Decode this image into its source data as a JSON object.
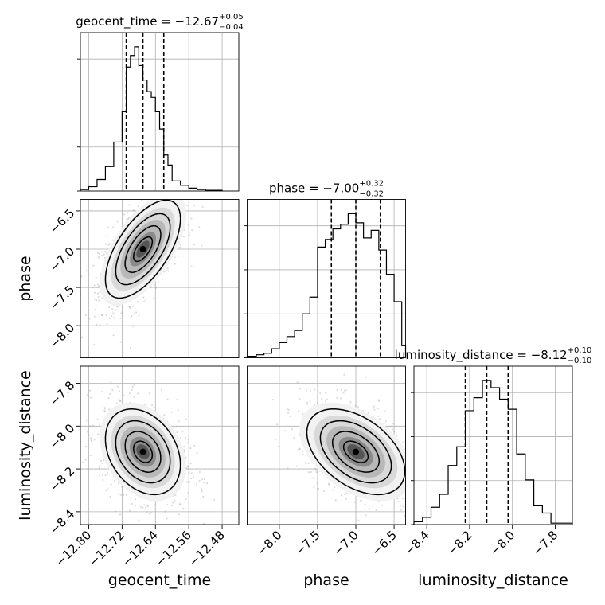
{
  "chart_data": {
    "type": "corner",
    "parameters": [
      "geocent_time",
      "phase",
      "luminosity_distance"
    ],
    "axis_labels": {
      "geocent_time": "geocent_time",
      "phase": "phase",
      "luminosity_distance": "luminosity_distance"
    },
    "ranges": {
      "geocent_time": [
        -12.82,
        -12.44
      ],
      "phase": [
        -8.42,
        -6.35
      ],
      "luminosity_distance": [
        -8.46,
        -7.72
      ]
    },
    "ticks": {
      "geocent_time": [
        -12.8,
        -12.72,
        -12.64,
        -12.56,
        -12.48
      ],
      "phase": [
        -8.0,
        -7.5,
        -7.0,
        -6.5
      ],
      "luminosity_distance": [
        -8.4,
        -8.2,
        -8.0,
        -7.8
      ]
    },
    "tick_labels": {
      "geocent_time": [
        "−12.80",
        "−12.72",
        "−12.64",
        "−12.56",
        "−12.48"
      ],
      "phase": [
        "−8.0",
        "−7.5",
        "−7.0",
        "−6.5"
      ],
      "luminosity_distance": [
        "−8.4",
        "−8.2",
        "−8.0",
        "−7.8"
      ]
    },
    "titles": {
      "geocent_time": {
        "name": "geocent_time",
        "median": "−12.67",
        "plus": "+0.05",
        "minus": "−0.04"
      },
      "phase": {
        "name": "phase",
        "median": "−7.00",
        "plus": "+0.32",
        "minus": "−0.32"
      },
      "luminosity_distance": {
        "name": "luminosity_distance",
        "median": "−8.12",
        "plus": "+0.10",
        "minus": "−0.10"
      }
    },
    "quantiles": {
      "geocent_time": [
        -12.71,
        -12.67,
        -12.62
      ],
      "phase": [
        -7.32,
        -7.0,
        -6.68
      ],
      "luminosity_distance": [
        -8.22,
        -8.12,
        -8.02
      ]
    },
    "histograms": {
      "geocent_time": {
        "edges": [
          -12.82,
          -12.8,
          -12.78,
          -12.76,
          -12.74,
          -12.72,
          -12.71,
          -12.7,
          -12.69,
          -12.68,
          -12.67,
          -12.66,
          -12.65,
          -12.64,
          -12.63,
          -12.62,
          -12.61,
          -12.6,
          -12.58,
          -12.56,
          -12.54,
          -12.52,
          -12.48
        ],
        "heights": [
          0.01,
          0.03,
          0.08,
          0.17,
          0.34,
          0.55,
          0.86,
          0.94,
          1.0,
          0.87,
          0.77,
          0.69,
          0.65,
          0.55,
          0.43,
          0.25,
          0.18,
          0.07,
          0.04,
          0.02,
          0.01,
          0.005
        ]
      },
      "phase": {
        "edges": [
          -8.42,
          -8.3,
          -8.2,
          -8.1,
          -8.0,
          -7.9,
          -7.8,
          -7.7,
          -7.6,
          -7.5,
          -7.4,
          -7.3,
          -7.2,
          -7.1,
          -7.0,
          -6.9,
          -6.8,
          -6.7,
          -6.6,
          -6.5,
          -6.4,
          -6.35
        ],
        "heights": [
          0.01,
          0.02,
          0.03,
          0.06,
          0.1,
          0.14,
          0.18,
          0.29,
          0.4,
          0.73,
          0.78,
          0.85,
          0.88,
          0.95,
          0.89,
          0.79,
          0.84,
          0.71,
          0.55,
          0.37,
          0.08
        ]
      },
      "luminosity_distance": {
        "edges": [
          -8.46,
          -8.42,
          -8.38,
          -8.34,
          -8.3,
          -8.26,
          -8.22,
          -8.18,
          -8.14,
          -8.1,
          -8.06,
          -8.02,
          -7.98,
          -7.94,
          -7.9,
          -7.86,
          -7.82,
          -7.72
        ],
        "heights": [
          0.02,
          0.05,
          0.12,
          0.21,
          0.41,
          0.54,
          0.79,
          0.88,
          1.0,
          0.95,
          0.87,
          0.8,
          0.49,
          0.31,
          0.13,
          0.08,
          0.01
        ]
      }
    },
    "correlations": {
      "phase|geocent_time": 0.62,
      "luminosity_distance|geocent_time": -0.3,
      "luminosity_distance|phase": -0.45
    },
    "grid": true
  }
}
